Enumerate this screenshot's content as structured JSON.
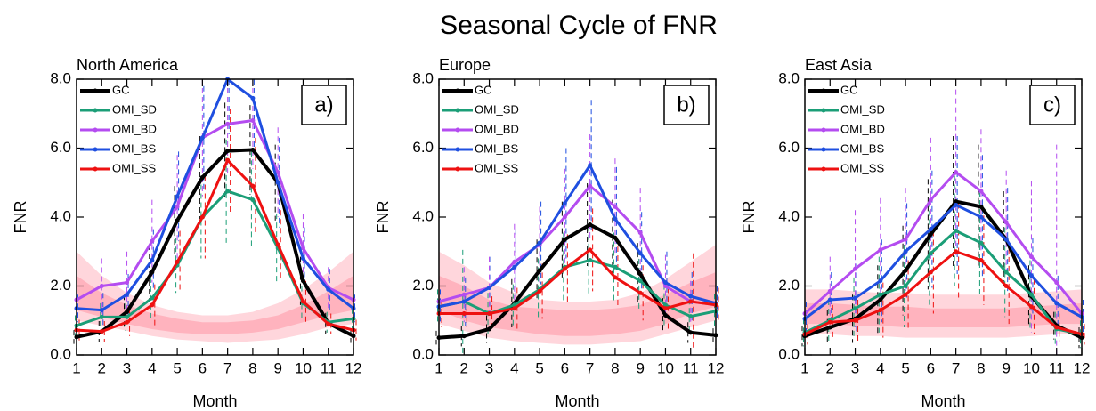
{
  "title": "Seasonal Cycle of FNR",
  "chart_data": [
    {
      "type": "line",
      "title": "North America",
      "panel_label": "a)",
      "xlabel": "Month",
      "ylabel": "FNR",
      "x": [
        1,
        2,
        3,
        4,
        5,
        6,
        7,
        8,
        9,
        10,
        11,
        12
      ],
      "xlim": [
        1,
        12
      ],
      "xticks": [
        1,
        2,
        3,
        4,
        5,
        6,
        7,
        8,
        9,
        10,
        11,
        12
      ],
      "ylim": [
        0,
        8
      ],
      "yticks": [
        {
          "value": 0,
          "label": "0.0"
        },
        {
          "value": 2,
          "label": "2.0"
        },
        {
          "value": 4,
          "label": "4.0"
        },
        {
          "value": 6,
          "label": "6.0"
        },
        {
          "value": 8,
          "label": "8.0"
        }
      ],
      "legend": "upper left",
      "bands": [
        {
          "color": "#ffd6dc",
          "lower": [
            1.0,
            0.85,
            0.7,
            0.55,
            0.45,
            0.4,
            0.35,
            0.4,
            0.45,
            0.6,
            0.8,
            0.9
          ],
          "upper": [
            3.0,
            2.3,
            1.8,
            1.45,
            1.25,
            1.15,
            1.15,
            1.25,
            1.5,
            1.9,
            2.4,
            3.0
          ]
        },
        {
          "color": "#ffb3be",
          "lower": [
            1.3,
            1.1,
            0.9,
            0.75,
            0.65,
            0.6,
            0.6,
            0.65,
            0.75,
            0.95,
            1.15,
            1.3
          ],
          "upper": [
            2.3,
            1.8,
            1.45,
            1.2,
            1.05,
            0.95,
            0.95,
            1.0,
            1.15,
            1.45,
            1.85,
            2.3
          ]
        }
      ],
      "series": [
        {
          "name": "GC",
          "color": "#000000",
          "values": [
            0.52,
            0.68,
            1.25,
            2.4,
            3.9,
            5.15,
            5.92,
            5.95,
            5.0,
            2.15,
            0.92,
            0.55
          ],
          "errors": [
            0.2,
            0.3,
            0.5,
            0.8,
            1.0,
            1.2,
            1.4,
            1.3,
            1.1,
            0.7,
            0.3,
            0.2
          ]
        },
        {
          "name": "OMI_SD",
          "color": "#1b9e77",
          "values": [
            0.85,
            1.1,
            1.1,
            1.65,
            2.6,
            4.0,
            4.75,
            4.5,
            3.1,
            1.5,
            0.95,
            1.05
          ],
          "errors": [
            0.3,
            0.4,
            0.4,
            0.6,
            0.8,
            1.2,
            1.5,
            1.4,
            1.0,
            0.5,
            0.3,
            0.3
          ]
        },
        {
          "name": "OMI_BD",
          "color": "#b44cf0",
          "values": [
            1.6,
            2.0,
            2.1,
            3.3,
            4.3,
            6.3,
            6.7,
            6.8,
            5.3,
            3.1,
            1.95,
            1.6
          ],
          "errors": [
            0.5,
            0.8,
            0.9,
            1.2,
            1.5,
            1.7,
            1.5,
            1.4,
            1.3,
            1.0,
            0.6,
            0.5
          ]
        },
        {
          "name": "OMI_BS",
          "color": "#1f4fe0",
          "values": [
            1.35,
            1.3,
            1.75,
            2.75,
            4.6,
            6.3,
            8.0,
            7.45,
            5.0,
            2.8,
            1.9,
            1.35
          ],
          "errors": [
            0.4,
            0.5,
            0.6,
            0.9,
            1.3,
            1.5,
            1.6,
            1.5,
            1.3,
            0.9,
            0.6,
            0.4
          ]
        },
        {
          "name": "OMI_SS",
          "color": "#ee1111",
          "values": [
            0.72,
            0.68,
            0.95,
            1.45,
            2.7,
            4.0,
            5.65,
            4.9,
            3.2,
            1.55,
            0.9,
            0.72
          ],
          "errors": [
            0.3,
            0.3,
            0.4,
            0.6,
            0.9,
            1.2,
            1.5,
            1.4,
            1.0,
            0.6,
            0.3,
            0.3
          ]
        }
      ]
    },
    {
      "type": "line",
      "title": "Europe",
      "panel_label": "b)",
      "xlabel": "Month",
      "ylabel": "FNR",
      "x": [
        1,
        2,
        3,
        4,
        5,
        6,
        7,
        8,
        9,
        10,
        11,
        12
      ],
      "xlim": [
        1,
        12
      ],
      "xticks": [
        1,
        2,
        3,
        4,
        5,
        6,
        7,
        8,
        9,
        10,
        11,
        12
      ],
      "ylim": [
        0,
        8
      ],
      "yticks": [
        {
          "value": 0,
          "label": "0.0"
        },
        {
          "value": 2,
          "label": "2.0"
        },
        {
          "value": 4,
          "label": "4.0"
        },
        {
          "value": 6,
          "label": "6.0"
        },
        {
          "value": 8,
          "label": "8.0"
        }
      ],
      "legend": "upper left",
      "bands": [
        {
          "color": "#ffd6dc",
          "lower": [
            0.9,
            0.7,
            0.5,
            0.4,
            0.35,
            0.3,
            0.3,
            0.35,
            0.4,
            0.6,
            0.8,
            1.0
          ],
          "upper": [
            3.0,
            2.6,
            2.1,
            1.8,
            1.6,
            1.55,
            1.55,
            1.6,
            1.8,
            2.2,
            2.7,
            3.2
          ]
        },
        {
          "color": "#ffb3be",
          "lower": [
            1.3,
            1.0,
            0.8,
            0.7,
            0.6,
            0.55,
            0.55,
            0.6,
            0.7,
            0.9,
            1.2,
            1.4
          ],
          "upper": [
            2.3,
            2.0,
            1.6,
            1.4,
            1.35,
            1.3,
            1.3,
            1.35,
            1.45,
            1.75,
            2.1,
            2.4
          ]
        }
      ],
      "series": [
        {
          "name": "GC",
          "color": "#000000",
          "values": [
            0.5,
            0.55,
            0.75,
            1.5,
            2.45,
            3.35,
            3.78,
            3.4,
            2.35,
            1.15,
            0.65,
            0.57
          ],
          "errors": [
            0.2,
            0.3,
            0.4,
            0.7,
            0.9,
            1.1,
            1.2,
            1.1,
            0.9,
            0.5,
            0.3,
            0.2
          ]
        },
        {
          "name": "OMI_SD",
          "color": "#1b9e77",
          "values": [
            1.4,
            1.55,
            1.2,
            1.45,
            1.9,
            2.55,
            2.75,
            2.55,
            2.15,
            1.45,
            1.12,
            1.27
          ],
          "errors": [
            0.5,
            1.5,
            0.6,
            0.6,
            0.9,
            1.0,
            1.0,
            1.0,
            0.9,
            0.6,
            0.5,
            0.5
          ]
        },
        {
          "name": "OMI_BD",
          "color": "#b44cf0",
          "values": [
            1.55,
            1.75,
            1.95,
            2.7,
            3.2,
            4.0,
            4.9,
            4.3,
            3.55,
            2.0,
            1.55,
            1.45
          ],
          "errors": [
            0.5,
            0.8,
            0.9,
            1.1,
            1.1,
            1.4,
            1.5,
            1.4,
            1.3,
            0.9,
            0.6,
            0.5
          ]
        },
        {
          "name": "OMI_BS",
          "color": "#1f4fe0",
          "values": [
            1.4,
            1.55,
            1.95,
            2.55,
            3.25,
            4.4,
            5.5,
            3.95,
            2.95,
            2.1,
            1.7,
            1.5
          ],
          "errors": [
            0.5,
            0.7,
            0.9,
            1.1,
            1.2,
            1.6,
            1.9,
            1.5,
            1.2,
            0.9,
            0.7,
            0.5
          ]
        },
        {
          "name": "OMI_SS",
          "color": "#ee1111",
          "values": [
            1.2,
            1.2,
            1.2,
            1.35,
            1.85,
            2.5,
            3.05,
            2.25,
            1.8,
            1.35,
            1.55,
            1.45
          ],
          "errors": [
            0.4,
            0.4,
            0.5,
            0.6,
            0.8,
            1.0,
            1.2,
            0.9,
            0.8,
            0.6,
            1.4,
            0.5
          ]
        }
      ]
    },
    {
      "type": "line",
      "title": "East Asia",
      "panel_label": "c)",
      "xlabel": "Month",
      "ylabel": "FNR",
      "x": [
        1,
        2,
        3,
        4,
        5,
        6,
        7,
        8,
        9,
        10,
        11,
        12
      ],
      "xlim": [
        1,
        12
      ],
      "xticks": [
        1,
        2,
        3,
        4,
        5,
        6,
        7,
        8,
        9,
        10,
        11,
        12
      ],
      "ylim": [
        0,
        8
      ],
      "yticks": [
        {
          "value": 0,
          "label": "0.0"
        },
        {
          "value": 2,
          "label": "2.0"
        },
        {
          "value": 4,
          "label": "4.0"
        },
        {
          "value": 6,
          "label": "6.0"
        },
        {
          "value": 8,
          "label": "8.0"
        }
      ],
      "legend": "upper left",
      "bands": [
        {
          "color": "#ffd6dc",
          "lower": [
            0.6,
            0.6,
            0.55,
            0.55,
            0.5,
            0.5,
            0.5,
            0.5,
            0.5,
            0.55,
            0.6,
            0.6
          ],
          "upper": [
            1.9,
            1.9,
            1.85,
            1.8,
            1.8,
            1.75,
            1.75,
            1.75,
            1.75,
            1.8,
            1.85,
            1.9
          ]
        },
        {
          "color": "#ffb3be",
          "lower": [
            0.9,
            0.9,
            0.85,
            0.85,
            0.8,
            0.8,
            0.8,
            0.8,
            0.8,
            0.85,
            0.9,
            0.9
          ],
          "upper": [
            1.5,
            1.5,
            1.45,
            1.4,
            1.4,
            1.35,
            1.35,
            1.35,
            1.35,
            1.4,
            1.45,
            1.5
          ]
        }
      ],
      "series": [
        {
          "name": "GC",
          "color": "#000000",
          "values": [
            0.55,
            0.8,
            1.05,
            1.6,
            2.45,
            3.5,
            4.45,
            4.3,
            3.35,
            1.7,
            0.85,
            0.5
          ],
          "errors": [
            0.3,
            0.5,
            0.7,
            1.0,
            1.3,
            1.6,
            1.9,
            1.8,
            1.4,
            0.9,
            0.4,
            0.3
          ]
        },
        {
          "name": "OMI_SD",
          "color": "#1b9e77",
          "values": [
            0.65,
            1.0,
            1.35,
            1.75,
            2.0,
            2.95,
            3.6,
            3.25,
            2.4,
            1.75,
            0.75,
            0.6
          ],
          "errors": [
            0.4,
            0.6,
            0.9,
            1.1,
            1.2,
            1.5,
            1.6,
            1.5,
            1.3,
            1.0,
            0.5,
            0.4
          ]
        },
        {
          "name": "OMI_BD",
          "color": "#b44cf0",
          "values": [
            1.2,
            1.85,
            2.5,
            3.05,
            3.35,
            4.5,
            5.3,
            4.75,
            3.85,
            2.85,
            2.1,
            1.2
          ],
          "errors": [
            0.6,
            1.0,
            1.7,
            1.5,
            1.5,
            1.8,
            2.4,
            1.8,
            1.5,
            2.2,
            4.0,
            0.6
          ]
        },
        {
          "name": "OMI_BS",
          "color": "#1f4fe0",
          "values": [
            1.05,
            1.6,
            1.65,
            2.15,
            3.0,
            3.65,
            4.35,
            4.0,
            3.35,
            2.3,
            1.5,
            1.1
          ],
          "errors": [
            0.5,
            0.8,
            1.0,
            1.2,
            1.4,
            1.7,
            2.0,
            1.8,
            1.5,
            1.1,
            0.8,
            0.5
          ]
        },
        {
          "name": "OMI_SS",
          "color": "#ee1111",
          "values": [
            0.6,
            0.95,
            1.0,
            1.3,
            1.75,
            2.4,
            3.0,
            2.75,
            2.0,
            1.4,
            0.8,
            0.6
          ],
          "errors": [
            0.3,
            0.5,
            0.6,
            0.8,
            1.0,
            1.2,
            1.4,
            1.3,
            1.1,
            0.8,
            0.4,
            0.3
          ]
        }
      ]
    }
  ]
}
